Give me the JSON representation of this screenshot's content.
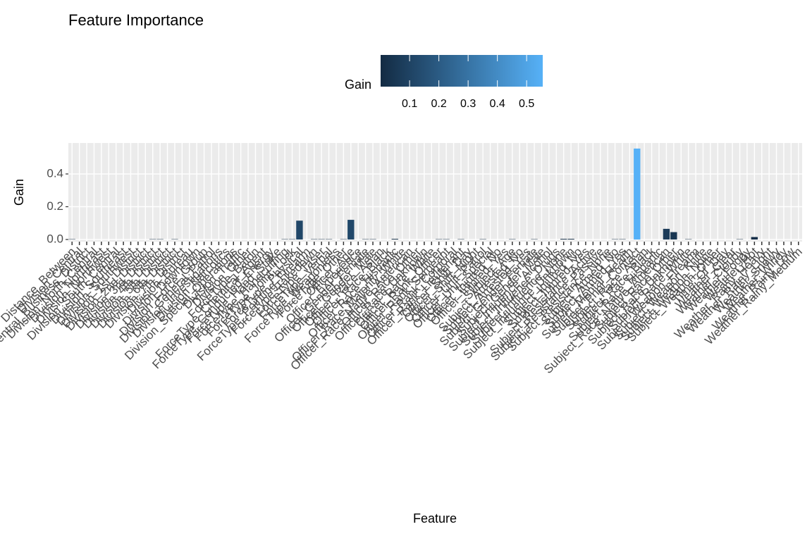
{
  "chart_data": {
    "type": "bar",
    "title": "Feature Importance",
    "x_label": "Feature",
    "y_label": "Gain",
    "legend_title": "Gain",
    "color_scale": {
      "low": "#132B43",
      "high": "#56B1F7",
      "lim": [
        0.001,
        0.555
      ],
      "ticks": [
        0.1,
        0.2,
        0.3,
        0.4,
        0.5
      ]
    },
    "ylim": [
      -0.013,
      0.589
    ],
    "yticks": [
      {
        "value": 0,
        "label": "0.0"
      },
      0.2,
      0.4
    ],
    "grid": true,
    "categories": [
      "Distance_Between",
      "Division_Central",
      "Division_Central_Business_District",
      "Division_North_Central",
      "Division_Northeast",
      "Division_Northwest",
      "Division_South_Central",
      "Division_Southeast",
      "Division_Southwest",
      "Division_1st_District",
      "Division_2nd_District",
      "Division_3rd_District",
      "Division_4th_District",
      "Division_5th_District",
      "Division_6th_District",
      "Division_7th_District",
      "Division_Bureau",
      "Division_Downtown",
      "Division_Force_Group",
      "Division_General_Patrol",
      "Division_Investigations",
      "Division_Narcotics",
      "Division_Special_Operations",
      "Division_Traffic",
      "Division_Other",
      "ForceType_Baton",
      "ForceType_Chemical_Agent",
      "ForceType_Conducted_Energy",
      "ForceType_Hand_Strike",
      "ForceType_Handcuffing",
      "ForceType_Joint_Lock",
      "ForceType_Physical",
      "ForceType_Pointing_Firearm",
      "ForceType_Takedown",
      "ForceType_Taser",
      "ForceType_Verbal",
      "ForceType_Weaponless",
      "ForceType_Other",
      "Officer_Age",
      "Officer_Experience",
      "Officer_Gender_Female",
      "Officer_Gender_Male",
      "Officer_Race_Asian",
      "Officer_Race_Black",
      "Officer_Race_Hispanic",
      "Officer_Race_Majority_White",
      "Officer_Race_Native_American",
      "Officer_Race_Other",
      "Officer_Race_Unknown",
      "Officer_Race_White",
      "Officer_Rank_Officer",
      "Officer_Rank_Sergeant",
      "Officer_Rank_Corporal",
      "Officer_Rank_Lieutenant",
      "Officer_Shift_Day",
      "Officer_Shift_Night",
      "Officer_Unit_Patrol",
      "Officer_Unit_Special",
      "Officer_Injured_No",
      "Officer_Injured_Yes",
      "Subject_Age",
      "Subject_Arrested_No",
      "Subject_Arrested_Yes",
      "Subject_Gender_Female",
      "Subject_Gender_Male",
      "Subject_Influence_Alcohol",
      "Subject_Influence_Drugs",
      "Subject_Influence_None",
      "Subject_Influence_Unknown",
      "Subject_Injured_No",
      "Subject_Injured_Yes",
      "Subject_Resistance_Active",
      "Subject_Resistance_Passive",
      "Subject_Resistance_None",
      "Subject_Armed_No",
      "Subject_Armed_Yes",
      "Subject_Mental_Health",
      "Subject_Prior_Contact",
      "Subject_Race_Asian",
      "Subject_Race_Black",
      "Subject_Race_Hispanic",
      "Subject_Race_Native_American",
      "Subject_Race_Other",
      "Subject_Race_Unknown",
      "Subject_Race_White",
      "Subject_Weapon_Firearm",
      "Subject_Weapon_Knife",
      "Subject_Weapon_None",
      "Subject_Weapon_Other",
      "Time_Of_Day",
      "Weather_Clear",
      "Weather_Cloudy",
      "Weather_Foggy",
      "Weather_Hot",
      "Weather_Rainy_Heavy",
      "Weather_Rainy_Light",
      "Weather_Snowy",
      "Weather_Windy",
      "Weather_Rainy_Low",
      "Weather_Rainy_Medium"
    ],
    "values": [
      0.002,
      0,
      0,
      0,
      0,
      0,
      0,
      0,
      0,
      0,
      0,
      0.002,
      0.002,
      0,
      0.002,
      0,
      0,
      0,
      0,
      0,
      0,
      0,
      0,
      0,
      0,
      0,
      0,
      0,
      0,
      0.002,
      0.002,
      0.115,
      0,
      0.002,
      0.002,
      0.002,
      0,
      0.002,
      0.12,
      0,
      0.002,
      0.002,
      0,
      0,
      0.004,
      0,
      0,
      0,
      0,
      0,
      0.002,
      0.002,
      0,
      0.002,
      0,
      0,
      0.002,
      0,
      0,
      0,
      0.002,
      0,
      0,
      0.002,
      0,
      0,
      0,
      0.004,
      0.004,
      0,
      0,
      0,
      0,
      0,
      0.002,
      0.002,
      0,
      0.555,
      0,
      0,
      0,
      0.065,
      0.045,
      0,
      0.002,
      0,
      0,
      0,
      0,
      0,
      0,
      0.002,
      0,
      0.015,
      0,
      0,
      0,
      0,
      0,
      0
    ]
  }
}
